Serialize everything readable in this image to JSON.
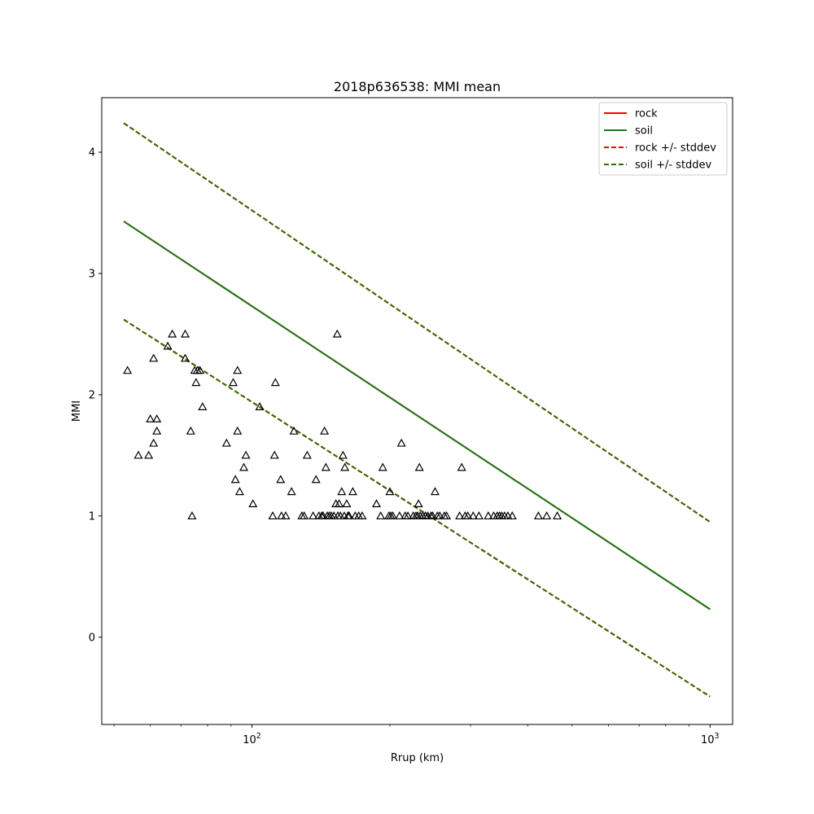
{
  "chart_data": {
    "type": "scatter",
    "title": "2018p636538: MMI mean",
    "xlabel": "Rrup (km)",
    "ylabel": "MMI",
    "xscale": "log",
    "xlim": [
      47,
      1120
    ],
    "ylim": [
      -0.72,
      4.45
    ],
    "x_ticks": [
      {
        "value": 100,
        "label": "10",
        "exp": "2"
      },
      {
        "value": 1000,
        "label": "10",
        "exp": "3"
      }
    ],
    "x_minor_ticks": [
      50,
      60,
      70,
      80,
      90,
      200,
      300,
      400,
      500,
      600,
      700,
      800,
      900
    ],
    "y_ticks": [
      0,
      1,
      2,
      3,
      4
    ],
    "grid": false,
    "legend_position": "top-right",
    "colors": {
      "rock": "#ff0000",
      "soil": "#1a7a1a",
      "rock_stddev": "#ff0000",
      "soil_stddev": "#2e6d00",
      "marker": "#000000"
    },
    "legend": [
      {
        "label": "rock",
        "style": "solid",
        "colorKey": "rock"
      },
      {
        "label": "soil",
        "style": "solid",
        "colorKey": "soil"
      },
      {
        "label": "rock +/- stddev",
        "style": "dashed",
        "colorKey": "rock_stddev"
      },
      {
        "label": "soil +/- stddev",
        "style": "dashed",
        "colorKey": "soil_stddev"
      }
    ],
    "lines": [
      {
        "name": "rock",
        "style": "solid",
        "colorKey": "rock",
        "x": [
          52.5,
          1000
        ],
        "y": [
          3.43,
          0.23
        ]
      },
      {
        "name": "soil",
        "style": "solid",
        "colorKey": "soil",
        "x": [
          52.5,
          1000
        ],
        "y": [
          3.43,
          0.23
        ]
      },
      {
        "name": "rock +/- stddev",
        "style": "dashed",
        "colorKey": "rock_stddev",
        "x": [
          52.5,
          1000
        ],
        "y": [
          4.24,
          0.95
        ]
      },
      {
        "name": "rock +/- stddev",
        "style": "dashed",
        "colorKey": "rock_stddev",
        "x": [
          52.5,
          1000
        ],
        "y": [
          2.62,
          -0.49
        ]
      },
      {
        "name": "soil +/- stddev",
        "style": "dashed",
        "colorKey": "soil_stddev",
        "x": [
          52.5,
          1000
        ],
        "y": [
          4.24,
          0.95
        ]
      },
      {
        "name": "soil +/- stddev",
        "style": "dashed",
        "colorKey": "soil_stddev",
        "x": [
          52.5,
          1000
        ],
        "y": [
          2.62,
          -0.49
        ]
      }
    ],
    "points": [
      [
        53.5,
        2.2
      ],
      [
        56.5,
        1.5
      ],
      [
        59.5,
        1.5
      ],
      [
        60,
        1.8
      ],
      [
        61,
        2.3
      ],
      [
        61,
        1.6
      ],
      [
        62,
        1.8
      ],
      [
        62,
        1.7
      ],
      [
        65.5,
        2.4
      ],
      [
        67,
        2.5
      ],
      [
        71.5,
        2.5
      ],
      [
        71.5,
        2.3
      ],
      [
        73.5,
        1.7
      ],
      [
        74,
        1.0
      ],
      [
        75,
        2.2
      ],
      [
        75.5,
        2.1
      ],
      [
        76,
        2.2
      ],
      [
        77,
        2.2
      ],
      [
        78,
        1.9
      ],
      [
        88,
        1.6
      ],
      [
        91,
        2.1
      ],
      [
        92,
        1.3
      ],
      [
        93,
        2.2
      ],
      [
        93,
        1.7
      ],
      [
        94,
        1.2
      ],
      [
        96,
        1.4
      ],
      [
        97,
        1.5
      ],
      [
        100.5,
        1.1
      ],
      [
        104,
        1.9
      ],
      [
        111,
        1.0
      ],
      [
        112,
        1.5
      ],
      [
        112.5,
        2.1
      ],
      [
        115.5,
        1.3
      ],
      [
        116,
        1.0
      ],
      [
        118.5,
        1.0
      ],
      [
        122,
        1.2
      ],
      [
        123.5,
        1.7
      ],
      [
        128.5,
        1.0
      ],
      [
        130,
        1.0
      ],
      [
        132,
        1.5
      ],
      [
        136,
        1.0
      ],
      [
        138,
        1.3
      ],
      [
        140,
        1.0
      ],
      [
        142,
        1.0
      ],
      [
        143,
        1.0
      ],
      [
        144,
        1.7
      ],
      [
        145,
        1.4
      ],
      [
        146,
        1.0
      ],
      [
        147.5,
        1.0
      ],
      [
        149,
        1.0
      ],
      [
        151,
        1.0
      ],
      [
        152.5,
        1.1
      ],
      [
        153.5,
        2.5
      ],
      [
        154,
        1.0
      ],
      [
        155,
        1.1
      ],
      [
        156,
        1.0
      ],
      [
        157,
        1.2
      ],
      [
        158,
        1.5
      ],
      [
        159,
        1.0
      ],
      [
        159.5,
        1.4
      ],
      [
        161,
        1.1
      ],
      [
        162,
        1.0
      ],
      [
        163,
        1.0
      ],
      [
        166,
        1.2
      ],
      [
        168,
        1.0
      ],
      [
        171,
        1.0
      ],
      [
        174,
        1.0
      ],
      [
        187,
        1.1
      ],
      [
        191,
        1.0
      ],
      [
        193,
        1.4
      ],
      [
        199,
        1.0
      ],
      [
        200,
        1.2
      ],
      [
        201,
        1.0
      ],
      [
        203,
        1.0
      ],
      [
        210,
        1.0
      ],
      [
        212,
        1.6
      ],
      [
        216,
        1.0
      ],
      [
        219,
        1.0
      ],
      [
        225,
        1.0
      ],
      [
        228,
        1.0
      ],
      [
        230,
        1.0
      ],
      [
        231,
        1.1
      ],
      [
        232,
        1.4
      ],
      [
        233,
        1.0
      ],
      [
        236,
        1.0
      ],
      [
        239,
        1.0
      ],
      [
        242,
        1.0
      ],
      [
        246,
        1.0
      ],
      [
        248,
        1.0
      ],
      [
        251,
        1.2
      ],
      [
        254,
        1.0
      ],
      [
        257,
        1.0
      ],
      [
        263,
        1.0
      ],
      [
        266,
        1.0
      ],
      [
        284,
        1.0
      ],
      [
        287,
        1.4
      ],
      [
        292,
        1.0
      ],
      [
        296,
        1.0
      ],
      [
        304,
        1.0
      ],
      [
        313,
        1.0
      ],
      [
        328,
        1.0
      ],
      [
        337,
        1.0
      ],
      [
        343,
        1.0
      ],
      [
        347,
        1.0
      ],
      [
        351,
        1.0
      ],
      [
        356,
        1.0
      ],
      [
        362,
        1.0
      ],
      [
        370,
        1.0
      ],
      [
        422,
        1.0
      ],
      [
        440,
        1.0
      ],
      [
        464,
        1.0
      ]
    ]
  }
}
